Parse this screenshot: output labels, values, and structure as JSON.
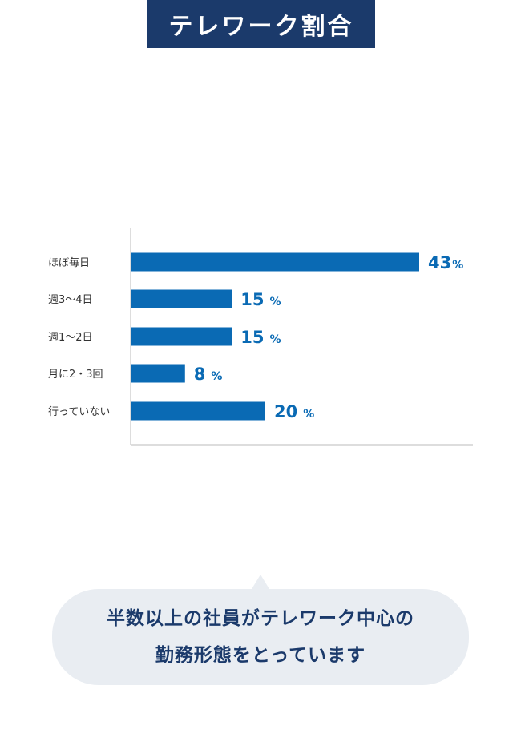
{
  "title": "テレワーク割合",
  "colors": {
    "banner": "#1b3a6b",
    "bar": "#0a6ab4",
    "value_text": "#0a6ab4",
    "callout_bg": "#e9edf2",
    "callout_text": "#1b3a6b",
    "axis": "#dddddd"
  },
  "chart_data": {
    "type": "bar",
    "orientation": "horizontal",
    "categories": [
      "ほぼ毎日",
      "週3〜4日",
      "週1〜2日",
      "月に2・3回",
      "行っていない"
    ],
    "values": [
      43,
      15,
      15,
      8,
      20
    ],
    "value_labels": [
      "43",
      "15",
      "15",
      "8",
      "20"
    ],
    "unit": "%",
    "xlim": [
      0,
      50
    ],
    "grid": false
  },
  "callout": {
    "line1": "半数以上の社員がテレワーク中心の",
    "line2": "勤務形態をとっています"
  }
}
